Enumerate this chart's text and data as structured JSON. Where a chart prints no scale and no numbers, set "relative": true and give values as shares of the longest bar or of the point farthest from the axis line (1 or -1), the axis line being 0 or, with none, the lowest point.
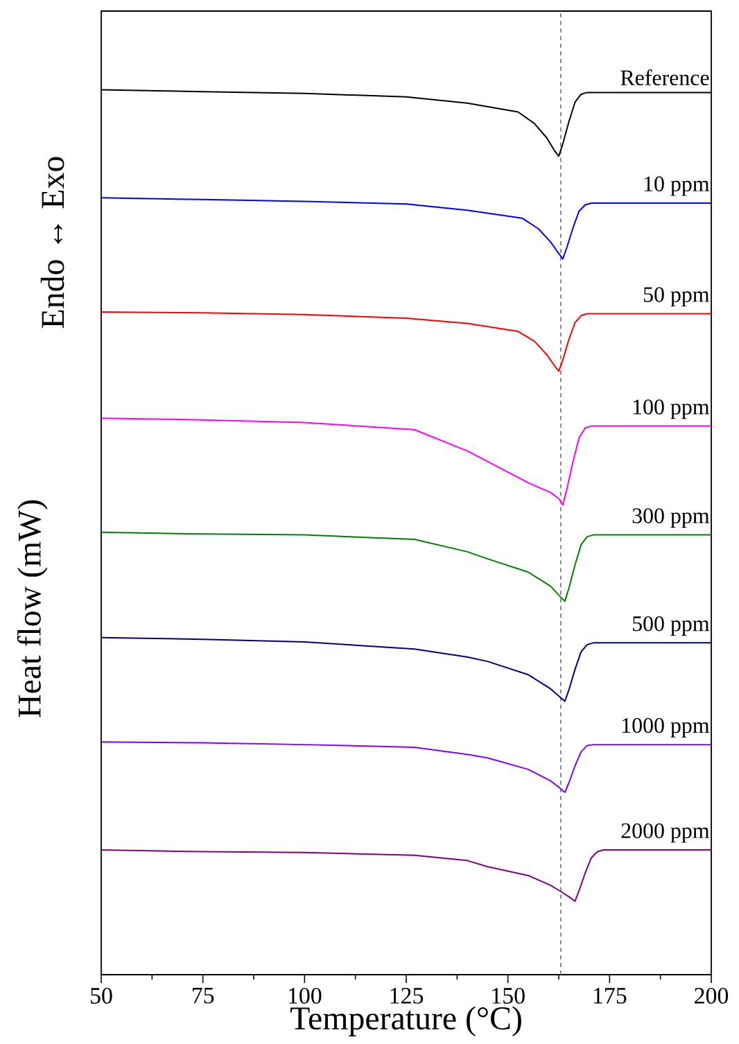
{
  "chart_data": {
    "type": "line",
    "relative": true,
    "xlabel": "Temperature (°C)",
    "ylabel": "Heat flow (mW)",
    "annotations": [
      "Endo ↔ Exo"
    ],
    "xlim": [
      50,
      200
    ],
    "xticks": [
      50,
      75,
      100,
      125,
      150,
      175,
      200
    ],
    "ref_lines": [
      {
        "axis": "x",
        "value": 163,
        "color": "#808080",
        "line_style": "dashed"
      }
    ],
    "line_style": "solid",
    "series": [
      {
        "name": "Reference",
        "color": "#000000",
        "x": [
          50,
          75,
          100,
          125,
          140,
          152.5,
          156.5,
          159.5,
          161.5,
          162.5,
          163.5,
          165,
          166.5,
          168,
          169.5,
          200
        ],
        "values": [
          1.0,
          0.998,
          0.996,
          0.992,
          0.985,
          0.975,
          0.962,
          0.946,
          0.931,
          0.925,
          0.939,
          0.964,
          0.986,
          0.995,
          0.997,
          0.997
        ]
      },
      {
        "name": "10 ppm",
        "color": "#0000ff",
        "x": [
          50,
          75,
          100,
          125,
          140,
          153.5,
          157.5,
          160.5,
          162.5,
          163.5,
          164.5,
          166,
          167.5,
          169,
          170.5,
          200
        ],
        "values": [
          0.878,
          0.876,
          0.874,
          0.871,
          0.864,
          0.855,
          0.843,
          0.828,
          0.815,
          0.809,
          0.822,
          0.844,
          0.863,
          0.87,
          0.872,
          0.872
        ]
      },
      {
        "name": "50 ppm",
        "color": "#ff0000",
        "x": [
          50,
          75,
          100,
          125,
          140,
          152.5,
          156.5,
          159.5,
          161.5,
          162.5,
          163.5,
          165,
          166.5,
          168,
          169.5,
          200
        ],
        "values": [
          0.749,
          0.748,
          0.746,
          0.742,
          0.736,
          0.727,
          0.716,
          0.701,
          0.688,
          0.682,
          0.695,
          0.718,
          0.737,
          0.745,
          0.747,
          0.747
        ]
      },
      {
        "name": "100 ppm",
        "color": "#ff00ff",
        "x": [
          50,
          75,
          100,
          127,
          140,
          145,
          155,
          160.5,
          162.5,
          163.5,
          164.5,
          166,
          167.5,
          169,
          170.5,
          200
        ],
        "values": [
          0.629,
          0.627,
          0.624,
          0.616,
          0.592,
          0.58,
          0.556,
          0.545,
          0.538,
          0.531,
          0.549,
          0.58,
          0.607,
          0.618,
          0.62,
          0.62
        ]
      },
      {
        "name": "300 ppm",
        "color": "#008000",
        "x": [
          50,
          75,
          100,
          127,
          140,
          145,
          155,
          160.5,
          162.5,
          164,
          165,
          166.5,
          168,
          169.5,
          171,
          200
        ],
        "values": [
          0.5,
          0.498,
          0.497,
          0.492,
          0.478,
          0.47,
          0.455,
          0.439,
          0.429,
          0.422,
          0.437,
          0.463,
          0.486,
          0.495,
          0.497,
          0.497
        ]
      },
      {
        "name": "500 ppm",
        "color": "#000080",
        "x": [
          50,
          75,
          100,
          127,
          140,
          145,
          155,
          160.5,
          162.5,
          164,
          165,
          166.5,
          168,
          169.5,
          171,
          200
        ],
        "values": [
          0.381,
          0.379,
          0.376,
          0.368,
          0.359,
          0.354,
          0.339,
          0.323,
          0.315,
          0.309,
          0.322,
          0.345,
          0.365,
          0.373,
          0.375,
          0.375
        ]
      },
      {
        "name": "1000 ppm",
        "color": "#8000ff",
        "x": [
          50,
          75,
          100,
          127,
          140,
          145,
          155,
          160.5,
          162.5,
          164,
          165,
          166.5,
          168,
          169.5,
          171,
          200
        ],
        "values": [
          0.263,
          0.262,
          0.26,
          0.257,
          0.249,
          0.245,
          0.232,
          0.219,
          0.212,
          0.206,
          0.217,
          0.236,
          0.252,
          0.259,
          0.26,
          0.26
        ]
      },
      {
        "name": "2000 ppm",
        "color": "#800080",
        "x": [
          50,
          75,
          100,
          127,
          140,
          145,
          155,
          160.5,
          163,
          165,
          166.5,
          167.5,
          169,
          170.5,
          172,
          173.5,
          200
        ],
        "values": [
          0.141,
          0.139,
          0.138,
          0.135,
          0.129,
          0.122,
          0.112,
          0.101,
          0.094,
          0.088,
          0.083,
          0.095,
          0.115,
          0.132,
          0.139,
          0.141,
          0.141
        ]
      }
    ]
  }
}
